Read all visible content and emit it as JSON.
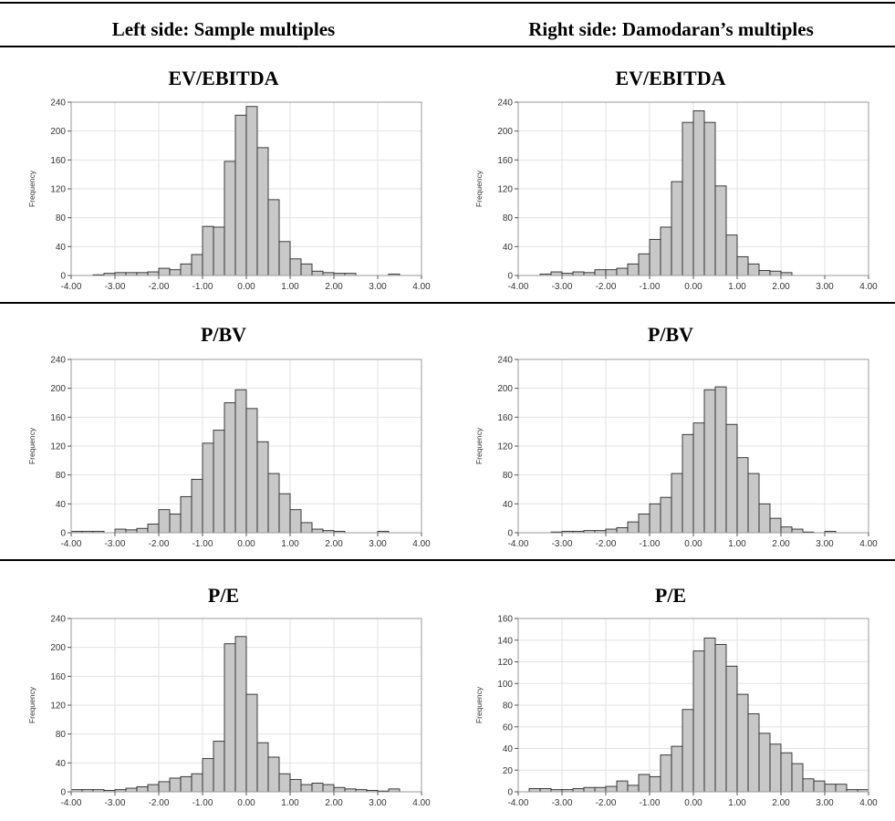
{
  "header": {
    "left": "Left side: Sample multiples",
    "right": "Right side: Damodaran’s multiples"
  },
  "chart_data": [
    {
      "type": "bar",
      "title": "EV/EBITDA",
      "ylabel": "Frequency",
      "xlabel": "",
      "xlim": [
        -4,
        4
      ],
      "ylim": [
        0,
        240
      ],
      "xticks": [
        "-4.00",
        "-3.00",
        "-2.00",
        "-1.00",
        "0.00",
        "1.00",
        "2.00",
        "3.00",
        "4.00"
      ],
      "yticks": [
        "0",
        "40",
        "80",
        "120",
        "160",
        "200",
        "240"
      ],
      "grid": true,
      "bin_start": -3.5,
      "bin_width": 0.25,
      "values": [
        1,
        3,
        4,
        4,
        4,
        5,
        10,
        8,
        16,
        29,
        68,
        67,
        158,
        222,
        234,
        177,
        105,
        47,
        23,
        16,
        6,
        4,
        3,
        3,
        0,
        0,
        0,
        2,
        0,
        0
      ]
    },
    {
      "type": "bar",
      "title": "EV/EBITDA",
      "ylabel": "Frequency",
      "xlabel": "",
      "xlim": [
        -4,
        4
      ],
      "ylim": [
        0,
        240
      ],
      "xticks": [
        "-4.00",
        "-3.00",
        "-2.00",
        "-1.00",
        "0.00",
        "1.00",
        "2.00",
        "3.00",
        "4.00"
      ],
      "yticks": [
        "0",
        "40",
        "80",
        "120",
        "160",
        "200",
        "240"
      ],
      "grid": true,
      "bin_start": -3.5,
      "bin_width": 0.25,
      "values": [
        2,
        5,
        3,
        5,
        4,
        8,
        8,
        10,
        16,
        30,
        50,
        67,
        130,
        212,
        228,
        212,
        124,
        56,
        26,
        16,
        7,
        6,
        4
      ]
    },
    {
      "type": "bar",
      "title": "P/BV",
      "ylabel": "Frequency",
      "xlabel": "",
      "xlim": [
        -4,
        4
      ],
      "ylim": [
        0,
        240
      ],
      "xticks": [
        "-4.00",
        "-3.00",
        "-2.00",
        "-1.00",
        "0.00",
        "1.00",
        "2.00",
        "3.00",
        "4.00"
      ],
      "yticks": [
        "0",
        "40",
        "80",
        "120",
        "160",
        "200",
        "240"
      ],
      "grid": true,
      "bin_start": -4.0,
      "bin_width": 0.25,
      "values": [
        2,
        2,
        2,
        0,
        5,
        4,
        6,
        12,
        32,
        26,
        50,
        74,
        124,
        142,
        180,
        198,
        172,
        126,
        82,
        54,
        32,
        14,
        5,
        3,
        2,
        0,
        0,
        0,
        2,
        0
      ]
    },
    {
      "type": "bar",
      "title": "P/BV",
      "ylabel": "Frequency",
      "xlabel": "",
      "xlim": [
        -4,
        4
      ],
      "ylim": [
        0,
        240
      ],
      "xticks": [
        "-4.00",
        "-3.00",
        "-2.00",
        "-1.00",
        "0.00",
        "1.00",
        "2.00",
        "3.00",
        "4.00"
      ],
      "yticks": [
        "0",
        "40",
        "80",
        "120",
        "160",
        "200",
        "240"
      ],
      "grid": true,
      "bin_start": -3.25,
      "bin_width": 0.25,
      "values": [
        1,
        2,
        2,
        3,
        3,
        5,
        7,
        15,
        26,
        40,
        49,
        82,
        136,
        152,
        198,
        202,
        150,
        104,
        82,
        40,
        20,
        8,
        5,
        1,
        0,
        2
      ]
    },
    {
      "type": "bar",
      "title": "P/E",
      "ylabel": "Frequency",
      "xlabel": "",
      "xlim": [
        -4,
        4
      ],
      "ylim": [
        0,
        240
      ],
      "xticks": [
        "-4.00",
        "-3.00",
        "-2.00",
        "-1.00",
        "0.00",
        "1.00",
        "2.00",
        "3.00",
        "4.00"
      ],
      "yticks": [
        "0",
        "40",
        "80",
        "120",
        "160",
        "200",
        "240"
      ],
      "grid": true,
      "bin_start": -4.0,
      "bin_width": 0.25,
      "values": [
        3,
        3,
        3,
        2,
        3,
        5,
        7,
        10,
        14,
        19,
        21,
        25,
        46,
        70,
        205,
        215,
        135,
        68,
        48,
        25,
        17,
        10,
        12,
        10,
        6,
        4,
        3,
        2,
        1,
        4
      ]
    },
    {
      "type": "bar",
      "title": "P/E",
      "ylabel": "Frequency",
      "xlabel": "",
      "xlim": [
        -4,
        4
      ],
      "ylim": [
        0,
        160
      ],
      "xticks": [
        "-4.00",
        "-3.00",
        "-2.00",
        "-1.00",
        "0.00",
        "1.00",
        "2.00",
        "3.00",
        "4.00"
      ],
      "yticks": [
        "0",
        "20",
        "40",
        "60",
        "80",
        "100",
        "120",
        "140",
        "160"
      ],
      "grid": true,
      "bin_start": -3.75,
      "bin_width": 0.25,
      "values": [
        3,
        3,
        2,
        2,
        3,
        4,
        4,
        5,
        10,
        6,
        16,
        14,
        34,
        42,
        76,
        130,
        142,
        136,
        116,
        90,
        72,
        54,
        44,
        36,
        26,
        12,
        10,
        7,
        7,
        2,
        2
      ]
    }
  ]
}
